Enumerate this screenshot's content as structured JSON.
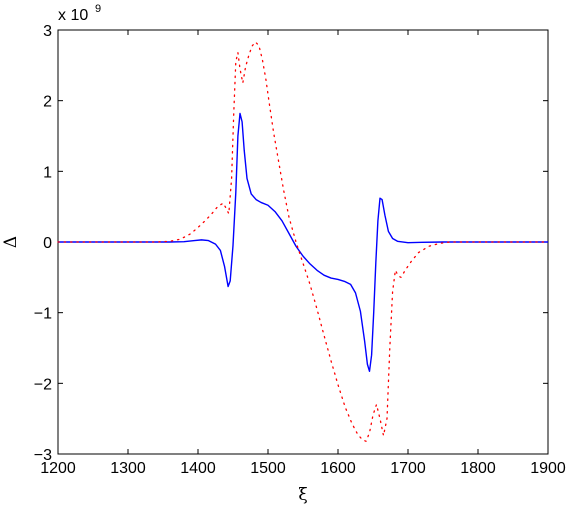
{
  "chart_data": {
    "type": "line",
    "xlabel": "ξ",
    "ylabel": "Δ",
    "xlim": [
      1200,
      1900
    ],
    "ylim": [
      -3,
      3
    ],
    "y_multiplier": {
      "base": "x 10",
      "exponent": "9"
    },
    "x_ticks": [
      "1200",
      "1300",
      "1400",
      "1500",
      "1600",
      "1700",
      "1800",
      "1900"
    ],
    "y_ticks": [
      "−3",
      "−2",
      "−1",
      "0",
      "1",
      "2",
      "3"
    ],
    "grid": false,
    "legend": "none",
    "series": [
      {
        "color": "#0000ff",
        "style": "solid",
        "points": [
          [
            1200,
            0
          ],
          [
            1300,
            0
          ],
          [
            1360,
            0.0
          ],
          [
            1380,
            0.005
          ],
          [
            1395,
            0.02
          ],
          [
            1405,
            0.03
          ],
          [
            1415,
            0.02
          ],
          [
            1425,
            -0.03
          ],
          [
            1432,
            -0.12
          ],
          [
            1438,
            -0.35
          ],
          [
            1443,
            -0.63
          ],
          [
            1446,
            -0.55
          ],
          [
            1450,
            -0.05
          ],
          [
            1454,
            0.7
          ],
          [
            1457,
            1.5
          ],
          [
            1460,
            1.82
          ],
          [
            1463,
            1.7
          ],
          [
            1466,
            1.3
          ],
          [
            1470,
            0.9
          ],
          [
            1476,
            0.68
          ],
          [
            1483,
            0.6
          ],
          [
            1490,
            0.56
          ],
          [
            1500,
            0.52
          ],
          [
            1510,
            0.43
          ],
          [
            1520,
            0.3
          ],
          [
            1530,
            0.12
          ],
          [
            1540,
            -0.06
          ],
          [
            1550,
            -0.2
          ],
          [
            1560,
            -0.31
          ],
          [
            1570,
            -0.4
          ],
          [
            1580,
            -0.47
          ],
          [
            1590,
            -0.51
          ],
          [
            1600,
            -0.53
          ],
          [
            1610,
            -0.56
          ],
          [
            1618,
            -0.6
          ],
          [
            1625,
            -0.72
          ],
          [
            1632,
            -0.98
          ],
          [
            1638,
            -1.4
          ],
          [
            1642,
            -1.73
          ],
          [
            1645,
            -1.83
          ],
          [
            1648,
            -1.6
          ],
          [
            1651,
            -1.0
          ],
          [
            1654,
            -0.3
          ],
          [
            1657,
            0.3
          ],
          [
            1660,
            0.62
          ],
          [
            1663,
            0.6
          ],
          [
            1667,
            0.38
          ],
          [
            1672,
            0.15
          ],
          [
            1678,
            0.05
          ],
          [
            1685,
            0.01
          ],
          [
            1700,
            -0.01
          ],
          [
            1720,
            -0.005
          ],
          [
            1750,
            0
          ],
          [
            1800,
            0
          ],
          [
            1900,
            0
          ]
        ]
      },
      {
        "color": "#ff0000",
        "style": "dotted",
        "points": [
          [
            1200,
            0
          ],
          [
            1340,
            0
          ],
          [
            1360,
            0.01
          ],
          [
            1375,
            0.04
          ],
          [
            1390,
            0.12
          ],
          [
            1405,
            0.25
          ],
          [
            1418,
            0.38
          ],
          [
            1428,
            0.5
          ],
          [
            1436,
            0.55
          ],
          [
            1440,
            0.48
          ],
          [
            1444,
            0.4
          ],
          [
            1448,
            0.9
          ],
          [
            1451,
            1.8
          ],
          [
            1454,
            2.55
          ],
          [
            1457,
            2.68
          ],
          [
            1460,
            2.45
          ],
          [
            1464,
            2.25
          ],
          [
            1468,
            2.48
          ],
          [
            1472,
            2.62
          ],
          [
            1477,
            2.77
          ],
          [
            1482,
            2.83
          ],
          [
            1487,
            2.78
          ],
          [
            1492,
            2.58
          ],
          [
            1497,
            2.3
          ],
          [
            1502,
            1.95
          ],
          [
            1508,
            1.55
          ],
          [
            1515,
            1.15
          ],
          [
            1522,
            0.75
          ],
          [
            1530,
            0.35
          ],
          [
            1540,
            0.0
          ],
          [
            1550,
            -0.3
          ],
          [
            1560,
            -0.6
          ],
          [
            1570,
            -0.95
          ],
          [
            1580,
            -1.32
          ],
          [
            1590,
            -1.68
          ],
          [
            1600,
            -2.02
          ],
          [
            1610,
            -2.33
          ],
          [
            1620,
            -2.57
          ],
          [
            1628,
            -2.72
          ],
          [
            1635,
            -2.8
          ],
          [
            1640,
            -2.82
          ],
          [
            1645,
            -2.7
          ],
          [
            1650,
            -2.45
          ],
          [
            1655,
            -2.3
          ],
          [
            1660,
            -2.5
          ],
          [
            1665,
            -2.74
          ],
          [
            1670,
            -2.5
          ],
          [
            1674,
            -1.5
          ],
          [
            1678,
            -0.7
          ],
          [
            1682,
            -0.4
          ],
          [
            1686,
            -0.48
          ],
          [
            1690,
            -0.5
          ],
          [
            1696,
            -0.4
          ],
          [
            1705,
            -0.27
          ],
          [
            1715,
            -0.15
          ],
          [
            1730,
            -0.06
          ],
          [
            1745,
            -0.02
          ],
          [
            1760,
            0
          ],
          [
            1800,
            0
          ],
          [
            1900,
            0
          ]
        ]
      }
    ]
  }
}
